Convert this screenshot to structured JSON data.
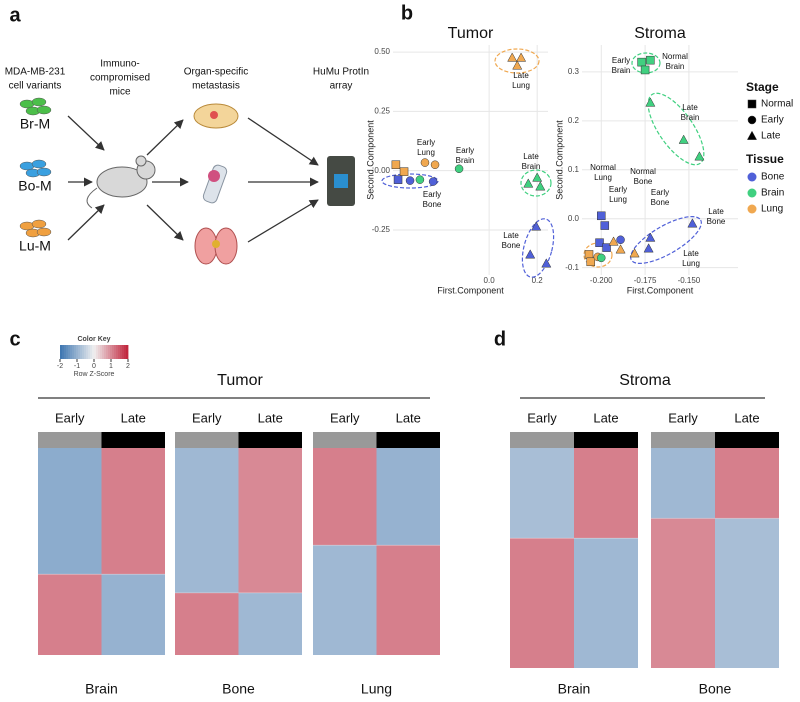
{
  "panel_a": {
    "label": "a",
    "headers": [
      [
        "MDA-MB-231",
        "cell variants"
      ],
      [
        "Immuno-",
        "compromised",
        "mice"
      ],
      [
        "Organ-specific",
        "metastasis"
      ],
      [
        "HuMu ProtIn",
        "array"
      ]
    ],
    "cell_lines": [
      {
        "name": "Br-M",
        "color": "#4cbf4a"
      },
      {
        "name": "Bo-M",
        "color": "#3aa0e0"
      },
      {
        "name": "Lu-M",
        "color": "#f0a040"
      }
    ]
  },
  "panel_b": {
    "label": "b",
    "legend": {
      "stage_title": "Stage",
      "stages": [
        {
          "name": "Normal",
          "shape": "square"
        },
        {
          "name": "Early",
          "shape": "circle"
        },
        {
          "name": "Late",
          "shape": "triangle"
        }
      ],
      "tissue_title": "Tissue",
      "tissues": [
        {
          "name": "Bone",
          "color": "#5060d8"
        },
        {
          "name": "Brain",
          "color": "#40d080"
        },
        {
          "name": "Lung",
          "color": "#f0a850"
        }
      ]
    }
  },
  "chart_data": [
    {
      "type": "scatter",
      "title": "Tumor",
      "xlabel": "First.Component",
      "ylabel": "Second.Component",
      "grid": true,
      "xlim": [
        -0.4,
        0.245
      ],
      "ylim": [
        -0.44,
        0.53
      ],
      "xticks": [
        {
          "value": 0,
          "label": "0.0"
        },
        0.2
      ],
      "yticks": [
        {
          "value": -0.25,
          "label": "-0.25"
        },
        {
          "value": 0,
          "label": "0.00"
        },
        {
          "value": 0.25,
          "label": "0.25"
        },
        {
          "value": 0.5,
          "label": "0.50"
        }
      ],
      "groups": [
        {
          "stage": "Late",
          "tissue": "Lung",
          "x": [
            0.096,
            0.133,
            0.117
          ],
          "y": [
            0.476,
            0.476,
            0.443
          ]
        },
        {
          "stage": "Late",
          "tissue": "Brain",
          "x": [
            0.163,
            0.213,
            0.2
          ],
          "y": [
            -0.055,
            -0.067,
            -0.03
          ]
        },
        {
          "stage": "Late",
          "tissue": "Bone",
          "x": [
            0.196,
            0.171,
            0.238
          ],
          "y": [
            -0.236,
            -0.354,
            -0.392
          ]
        },
        {
          "stage": "Early",
          "tissue": "Lung",
          "x": [
            -0.267,
            -0.225
          ],
          "y": [
            0.034,
            0.025
          ]
        },
        {
          "stage": "Early",
          "tissue": "Brain",
          "x": [
            -0.125,
            -0.288
          ],
          "y": [
            0.008,
            -0.038
          ]
        },
        {
          "stage": "Early",
          "tissue": "Bone",
          "x": [
            -0.329,
            -0.233
          ],
          "y": [
            -0.042,
            -0.046
          ]
        },
        {
          "stage": "Normal",
          "tissue": "Lung",
          "x": [
            -0.388,
            -0.354
          ],
          "y": [
            0.025,
            -0.004
          ]
        },
        {
          "stage": "Normal",
          "tissue": "Bone",
          "x": [
            -0.379
          ],
          "y": [
            -0.038
          ]
        }
      ],
      "annotations": [
        [
          "Late",
          "Lung"
        ],
        [
          "Early",
          "Lung"
        ],
        [
          "Early",
          "Brain"
        ],
        [
          "Late",
          "Brain"
        ],
        [
          "Early",
          "Bone"
        ],
        [
          "Late",
          "Bone"
        ]
      ]
    },
    {
      "type": "scatter",
      "title": "Stroma",
      "xlabel": "First.Component",
      "ylabel": "Second.Component",
      "grid": true,
      "xlim": [
        -0.211,
        -0.122
      ],
      "ylim": [
        -0.115,
        0.355
      ],
      "xticks": [
        {
          "value": -0.2,
          "label": "-0.200"
        },
        {
          "value": -0.175,
          "label": "-0.175"
        },
        {
          "value": -0.15,
          "label": "-0.150"
        }
      ],
      "yticks": [
        -0.1,
        {
          "value": 0,
          "label": "0.0"
        },
        0.1,
        0.2,
        0.3
      ],
      "groups": [
        {
          "stage": "Normal",
          "tissue": "Brain",
          "x": [
            -0.177,
            -0.172,
            -0.175
          ],
          "y": [
            0.32,
            0.324,
            0.304
          ]
        },
        {
          "stage": "Late",
          "tissue": "Brain",
          "x": [
            -0.172,
            -0.153,
            -0.144
          ],
          "y": [
            0.237,
            0.161,
            0.127
          ]
        },
        {
          "stage": "Normal",
          "tissue": "Bone",
          "x": [
            -0.2,
            -0.198,
            -0.201,
            -0.197
          ],
          "y": [
            0.006,
            -0.014,
            -0.049,
            -0.059
          ]
        },
        {
          "stage": "Early",
          "tissue": "Bone",
          "x": [
            -0.189
          ],
          "y": [
            -0.043
          ]
        },
        {
          "stage": "Late",
          "tissue": "Bone",
          "x": [
            -0.172,
            -0.148,
            -0.173
          ],
          "y": [
            -0.039,
            -0.01,
            -0.061
          ]
        },
        {
          "stage": "Normal",
          "tissue": "Lung",
          "x": [
            -0.207,
            -0.206
          ],
          "y": [
            -0.073,
            -0.088
          ]
        },
        {
          "stage": "Early",
          "tissue": "Lung",
          "x": [
            -0.202
          ],
          "y": [
            -0.078
          ]
        },
        {
          "stage": "Late",
          "tissue": "Lung",
          "x": [
            -0.193,
            -0.189,
            -0.181
          ],
          "y": [
            -0.047,
            -0.063,
            -0.071
          ]
        },
        {
          "stage": "Early",
          "tissue": "Brain",
          "x": [
            -0.2
          ],
          "y": [
            -0.08
          ]
        }
      ],
      "annotations": [
        [
          "Early",
          "Brain"
        ],
        [
          "Normal",
          "Brain"
        ],
        [
          "Late",
          "Brain"
        ],
        [
          "Normal",
          "Lung"
        ],
        [
          "Early",
          "Lung"
        ],
        [
          "Normal",
          "Bone"
        ],
        [
          "Early",
          "Bone"
        ],
        [
          "Late",
          "Bone"
        ],
        [
          "Late",
          "Lung"
        ]
      ]
    }
  ],
  "color_key": {
    "title": "Color Key",
    "xlabel": "Row Z-Score",
    "ticks": [
      -2,
      -1,
      0,
      1,
      2
    ],
    "colors": [
      "#3b74b0",
      "#f0f0f0",
      "#c0223a"
    ]
  },
  "column_colors": [
    "#999999",
    "#000000"
  ],
  "panel_c": {
    "label": "c",
    "title": "Tumor",
    "heatmaps": [
      {
        "name": "Brain",
        "columns": [
          "Early",
          "Late"
        ],
        "split": 0.61,
        "z": [
          [
            -1.1,
            1.1
          ],
          [
            1.1,
            -1.0
          ]
        ]
      },
      {
        "name": "Bone",
        "columns": [
          "Early",
          "Late"
        ],
        "split": 0.7,
        "z": [
          [
            -0.9,
            1.0
          ],
          [
            1.1,
            -0.9
          ]
        ]
      },
      {
        "name": "Lung",
        "columns": [
          "Early",
          "Late"
        ],
        "split": 0.47,
        "z": [
          [
            1.1,
            -1.0
          ],
          [
            -0.9,
            1.1
          ]
        ]
      }
    ]
  },
  "panel_d": {
    "label": "d",
    "title": "Stroma",
    "heatmaps": [
      {
        "name": "Brain",
        "columns": [
          "Early",
          "Late"
        ],
        "split": 0.41,
        "z": [
          [
            -0.8,
            1.1
          ],
          [
            1.1,
            -0.9
          ]
        ]
      },
      {
        "name": "Bone",
        "columns": [
          "Early",
          "Late"
        ],
        "split": 0.32,
        "z": [
          [
            -0.9,
            1.1
          ],
          [
            1.0,
            -0.8
          ]
        ]
      }
    ]
  }
}
